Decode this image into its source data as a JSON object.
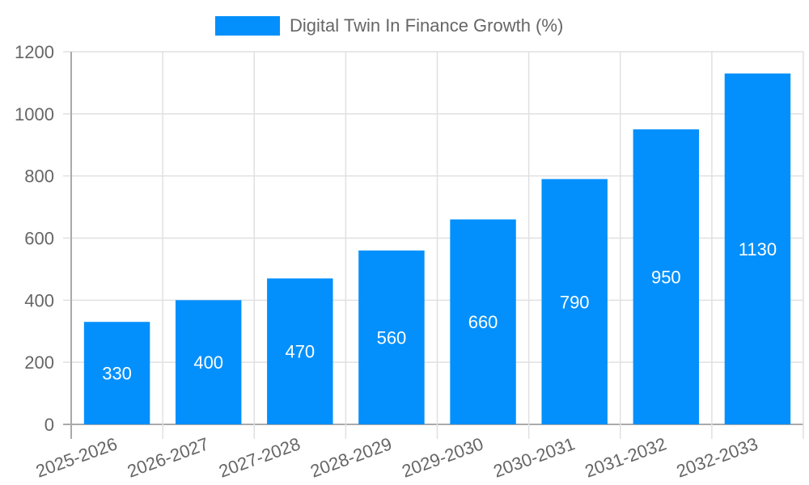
{
  "chart_data": {
    "type": "bar",
    "title": "",
    "legend": [
      "Digital Twin In Finance Growth (%)"
    ],
    "legend_position": "top",
    "categories": [
      "2025-2026",
      "2026-2027",
      "2027-2028",
      "2028-2029",
      "2029-2030",
      "2030-2031",
      "2031-2032",
      "2032-2033"
    ],
    "series": [
      {
        "name": "Digital Twin In Finance Growth (%)",
        "color": "#0390fc",
        "values": [
          330,
          400,
          470,
          560,
          660,
          790,
          950,
          1130
        ]
      }
    ],
    "xlabel": "",
    "ylabel": "",
    "ylim": [
      0,
      1200
    ],
    "yticks": [
      0,
      200,
      400,
      600,
      800,
      1000,
      1200
    ],
    "grid": true,
    "data_labels": true
  },
  "legend": {
    "label": "Digital Twin In Finance Growth (%)"
  }
}
